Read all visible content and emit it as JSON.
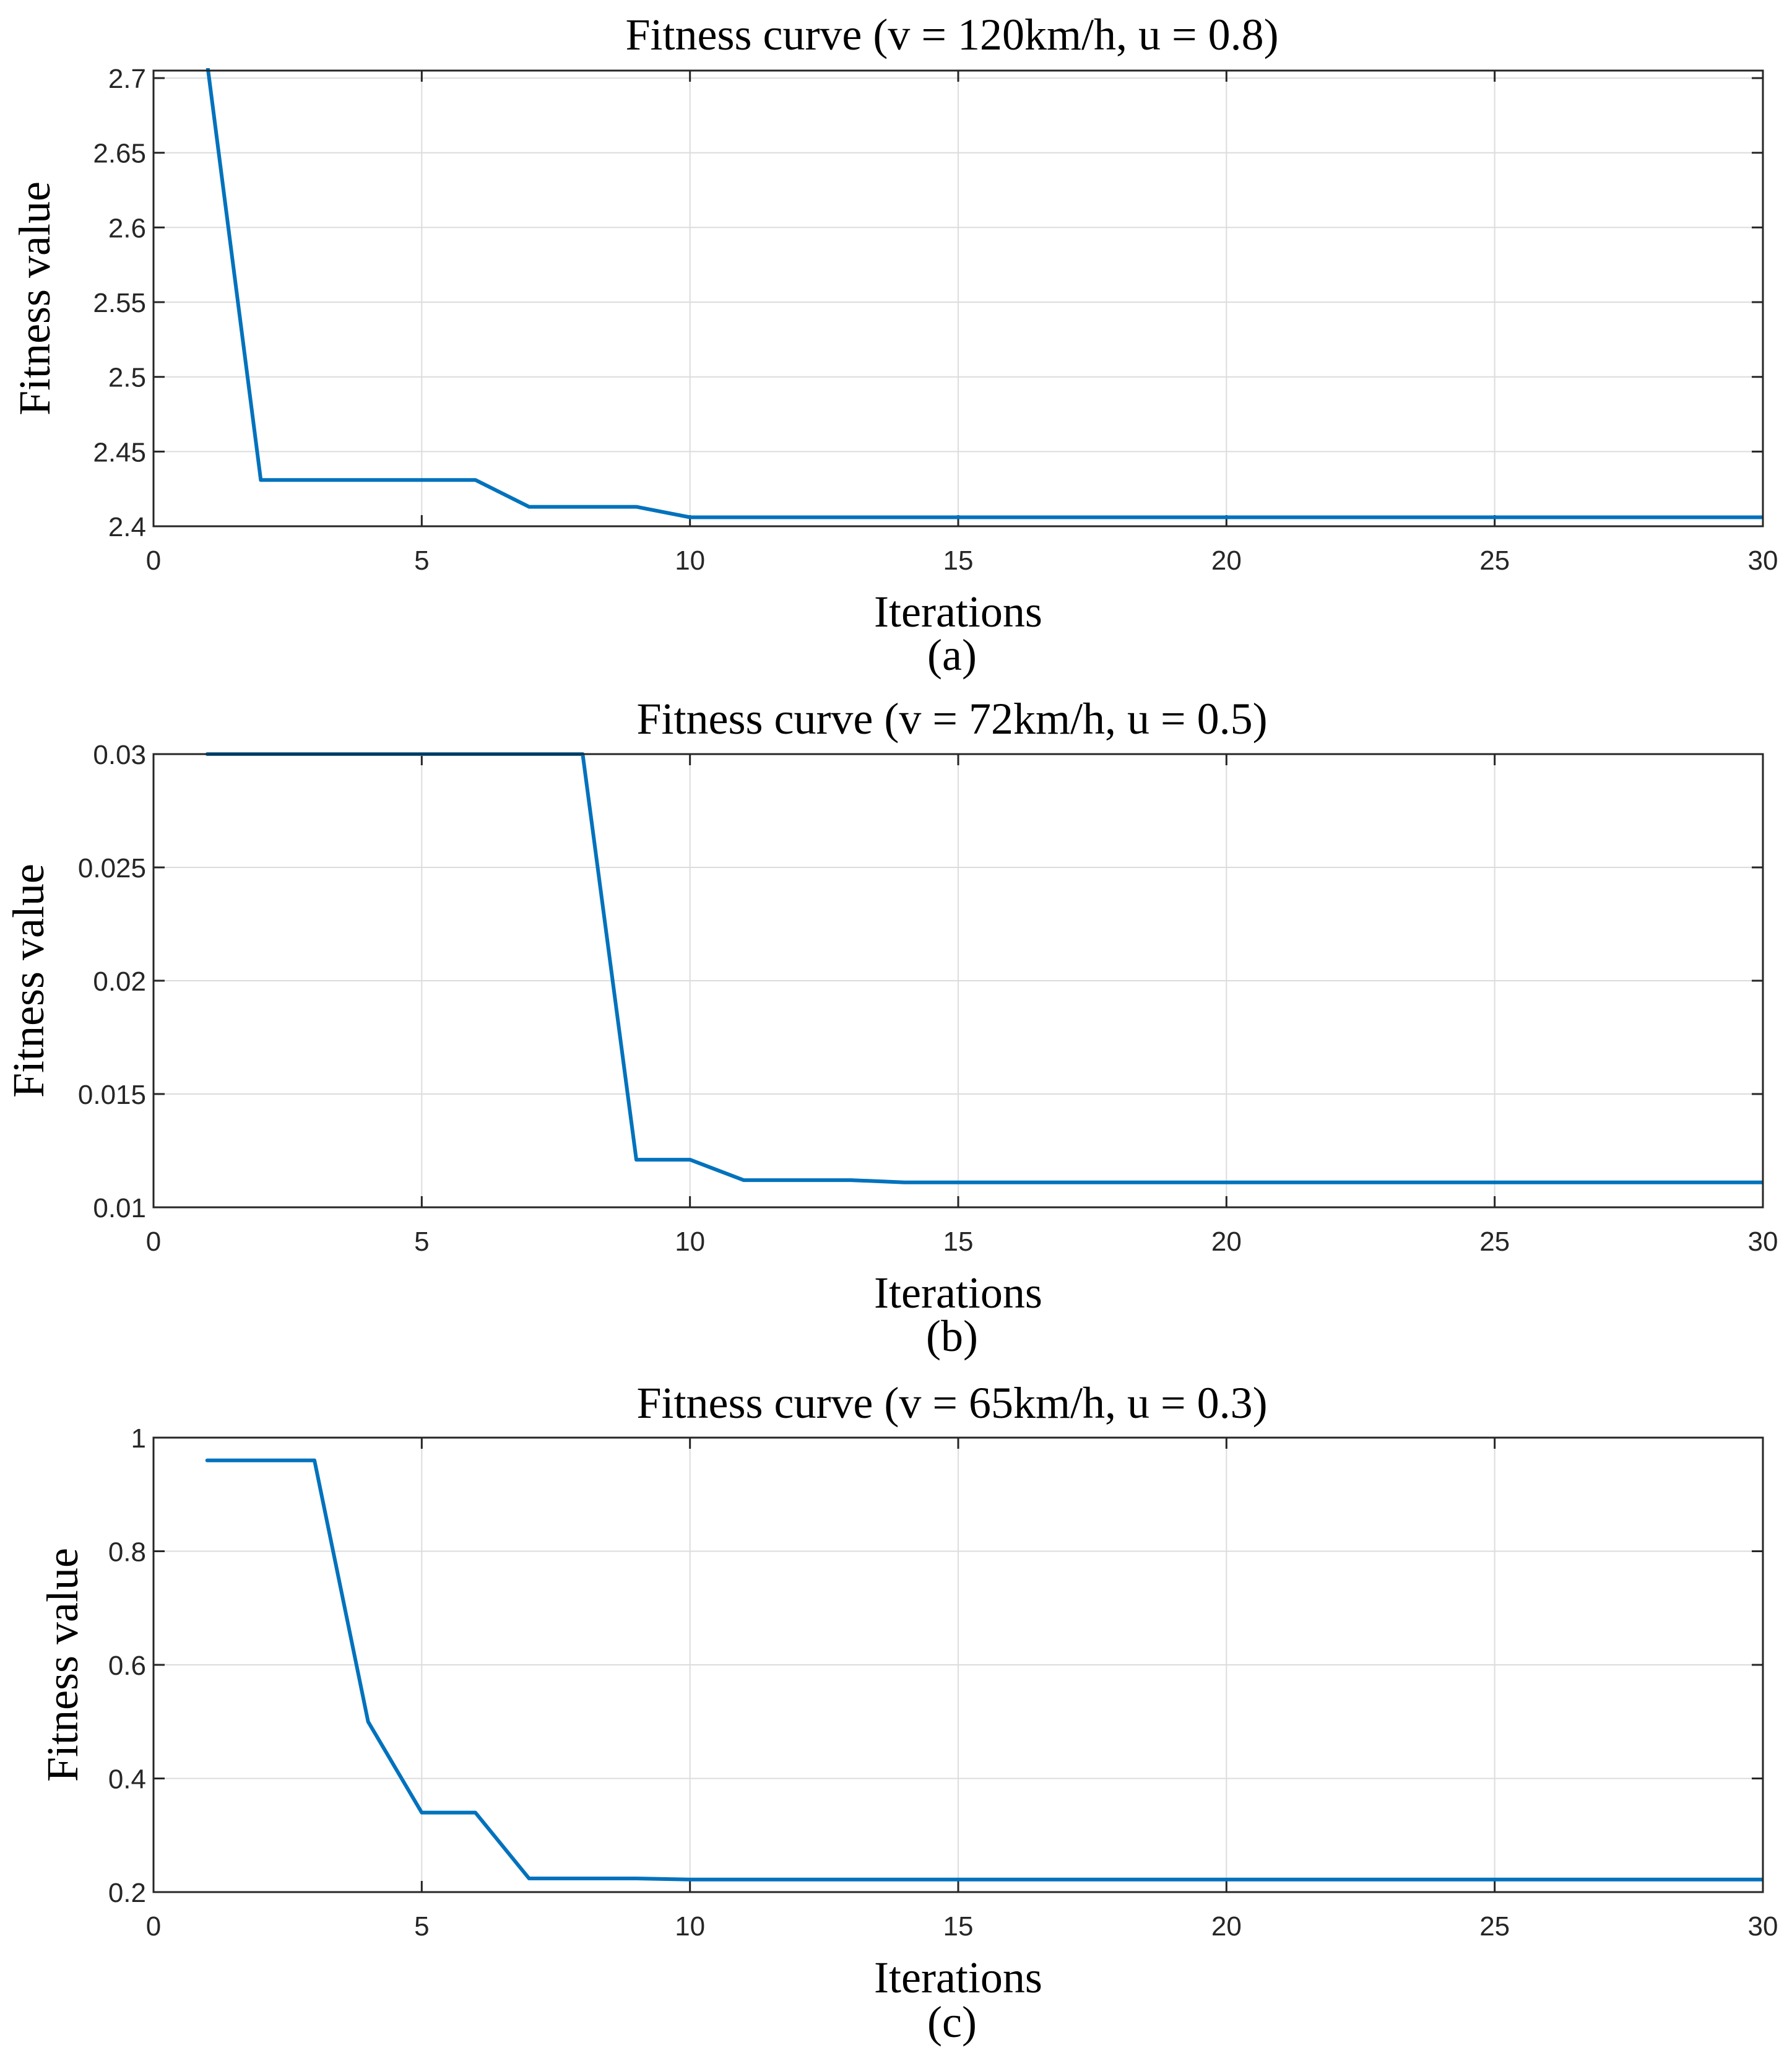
{
  "colors": {
    "series": "#0072BD",
    "axis": "#262626",
    "grid": "#dcdcdc"
  },
  "chart_data": [
    {
      "type": "line",
      "title": "Fitness curve (v = 120km/h, u = 0.8)",
      "xlabel": "Iterations",
      "ylabel": "Fitness value",
      "caption": "(a)",
      "xlim": [
        0,
        30
      ],
      "ylim": [
        2.4,
        2.705
      ],
      "xticks": [
        0,
        5,
        10,
        15,
        20,
        25,
        30
      ],
      "xtick_labels": [
        "0",
        "5",
        "10",
        "15",
        "20",
        "25",
        "30"
      ],
      "yticks": [
        2.4,
        2.45,
        2.5,
        2.55,
        2.6,
        2.65,
        2.7
      ],
      "ytick_labels": [
        "2.4",
        "2.45",
        "2.5",
        "2.55",
        "2.6",
        "2.65",
        "2.7"
      ],
      "grid": true,
      "series": [
        {
          "name": "Fitness",
          "x": [
            1,
            2,
            3,
            4,
            5,
            6,
            7,
            8,
            9,
            10,
            11,
            12,
            13,
            14,
            15,
            16,
            17,
            18,
            19,
            20,
            21,
            22,
            23,
            24,
            25,
            26,
            27,
            28,
            29,
            30
          ],
          "y": [
            2.71,
            2.431,
            2.431,
            2.431,
            2.431,
            2.431,
            2.413,
            2.413,
            2.413,
            2.406,
            2.406,
            2.406,
            2.406,
            2.406,
            2.406,
            2.406,
            2.406,
            2.406,
            2.406,
            2.406,
            2.406,
            2.406,
            2.406,
            2.406,
            2.406,
            2.406,
            2.406,
            2.406,
            2.406,
            2.406
          ]
        }
      ]
    },
    {
      "type": "line",
      "title": "Fitness curve (v = 72km/h, u = 0.5)",
      "xlabel": "Iterations",
      "ylabel": "Fitness value",
      "caption": "(b)",
      "xlim": [
        0,
        30
      ],
      "ylim": [
        0.01,
        0.03
      ],
      "xticks": [
        0,
        5,
        10,
        15,
        20,
        25,
        30
      ],
      "xtick_labels": [
        "0",
        "5",
        "10",
        "15",
        "20",
        "25",
        "30"
      ],
      "yticks": [
        0.01,
        0.015,
        0.02,
        0.025,
        0.03
      ],
      "ytick_labels": [
        "0.01",
        "0.015",
        "0.02",
        "0.025",
        "0.03"
      ],
      "grid": true,
      "series": [
        {
          "name": "Fitness",
          "x": [
            1,
            2,
            3,
            4,
            5,
            6,
            7,
            8,
            9,
            10,
            11,
            12,
            13,
            14,
            15,
            16,
            17,
            18,
            19,
            20,
            21,
            22,
            23,
            24,
            25,
            26,
            27,
            28,
            29,
            30
          ],
          "y": [
            0.03,
            0.03,
            0.03,
            0.03,
            0.03,
            0.03,
            0.03,
            0.03,
            0.0121,
            0.0121,
            0.0112,
            0.0112,
            0.0112,
            0.0111,
            0.0111,
            0.0111,
            0.0111,
            0.0111,
            0.0111,
            0.0111,
            0.0111,
            0.0111,
            0.0111,
            0.0111,
            0.0111,
            0.0111,
            0.0111,
            0.0111,
            0.0111,
            0.0111
          ]
        }
      ]
    },
    {
      "type": "line",
      "title": "Fitness curve (v = 65km/h, u = 0.3)",
      "xlabel": "Iterations",
      "ylabel": "Fitness value",
      "caption": "(c)",
      "xlim": [
        0,
        30
      ],
      "ylim": [
        0.2,
        1.0
      ],
      "xticks": [
        0,
        5,
        10,
        15,
        20,
        25,
        30
      ],
      "xtick_labels": [
        "0",
        "5",
        "10",
        "15",
        "20",
        "25",
        "30"
      ],
      "yticks": [
        0.2,
        0.4,
        0.6,
        0.8,
        1.0
      ],
      "ytick_labels": [
        "0.2",
        "0.4",
        "0.6",
        "0.8",
        "1"
      ],
      "grid": true,
      "series": [
        {
          "name": "Fitness",
          "x": [
            1,
            2,
            3,
            4,
            5,
            6,
            7,
            8,
            9,
            10,
            11,
            12,
            13,
            14,
            15,
            16,
            17,
            18,
            19,
            20,
            21,
            22,
            23,
            24,
            25,
            26,
            27,
            28,
            29,
            30
          ],
          "y": [
            0.96,
            0.96,
            0.96,
            0.5,
            0.34,
            0.34,
            0.224,
            0.224,
            0.224,
            0.222,
            0.222,
            0.222,
            0.222,
            0.222,
            0.222,
            0.222,
            0.222,
            0.222,
            0.222,
            0.222,
            0.222,
            0.222,
            0.222,
            0.222,
            0.222,
            0.222,
            0.222,
            0.222,
            0.222,
            0.222
          ]
        }
      ]
    }
  ]
}
